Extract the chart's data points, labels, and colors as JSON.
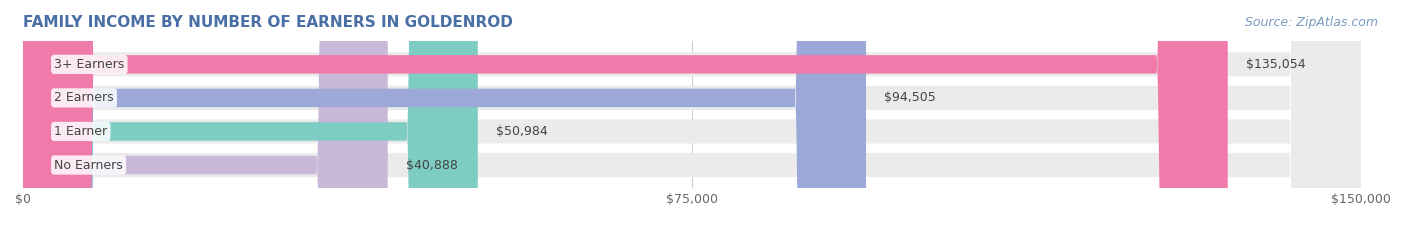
{
  "title": "FAMILY INCOME BY NUMBER OF EARNERS IN GOLDENROD",
  "source": "Source: ZipAtlas.com",
  "categories": [
    "No Earners",
    "1 Earner",
    "2 Earners",
    "3+ Earners"
  ],
  "values": [
    40888,
    50984,
    94505,
    135054
  ],
  "labels": [
    "$40,888",
    "$50,984",
    "$94,505",
    "$135,054"
  ],
  "bar_colors": [
    "#c9b8d8",
    "#7ecdc4",
    "#9ba8d8",
    "#f07aaa"
  ],
  "bar_track_color": "#ebebeb",
  "background_color": "#ffffff",
  "title_color": "#4a6fa5",
  "title_fontsize": 11,
  "label_fontsize": 9,
  "tick_fontsize": 9,
  "source_fontsize": 9,
  "source_color": "#7a9abf",
  "xlim": [
    0,
    150000
  ],
  "xticks": [
    0,
    75000,
    150000
  ],
  "xtick_labels": [
    "$0",
    "$75,000",
    "$150,000"
  ],
  "figsize": [
    14.06,
    2.33
  ],
  "dpi": 100
}
